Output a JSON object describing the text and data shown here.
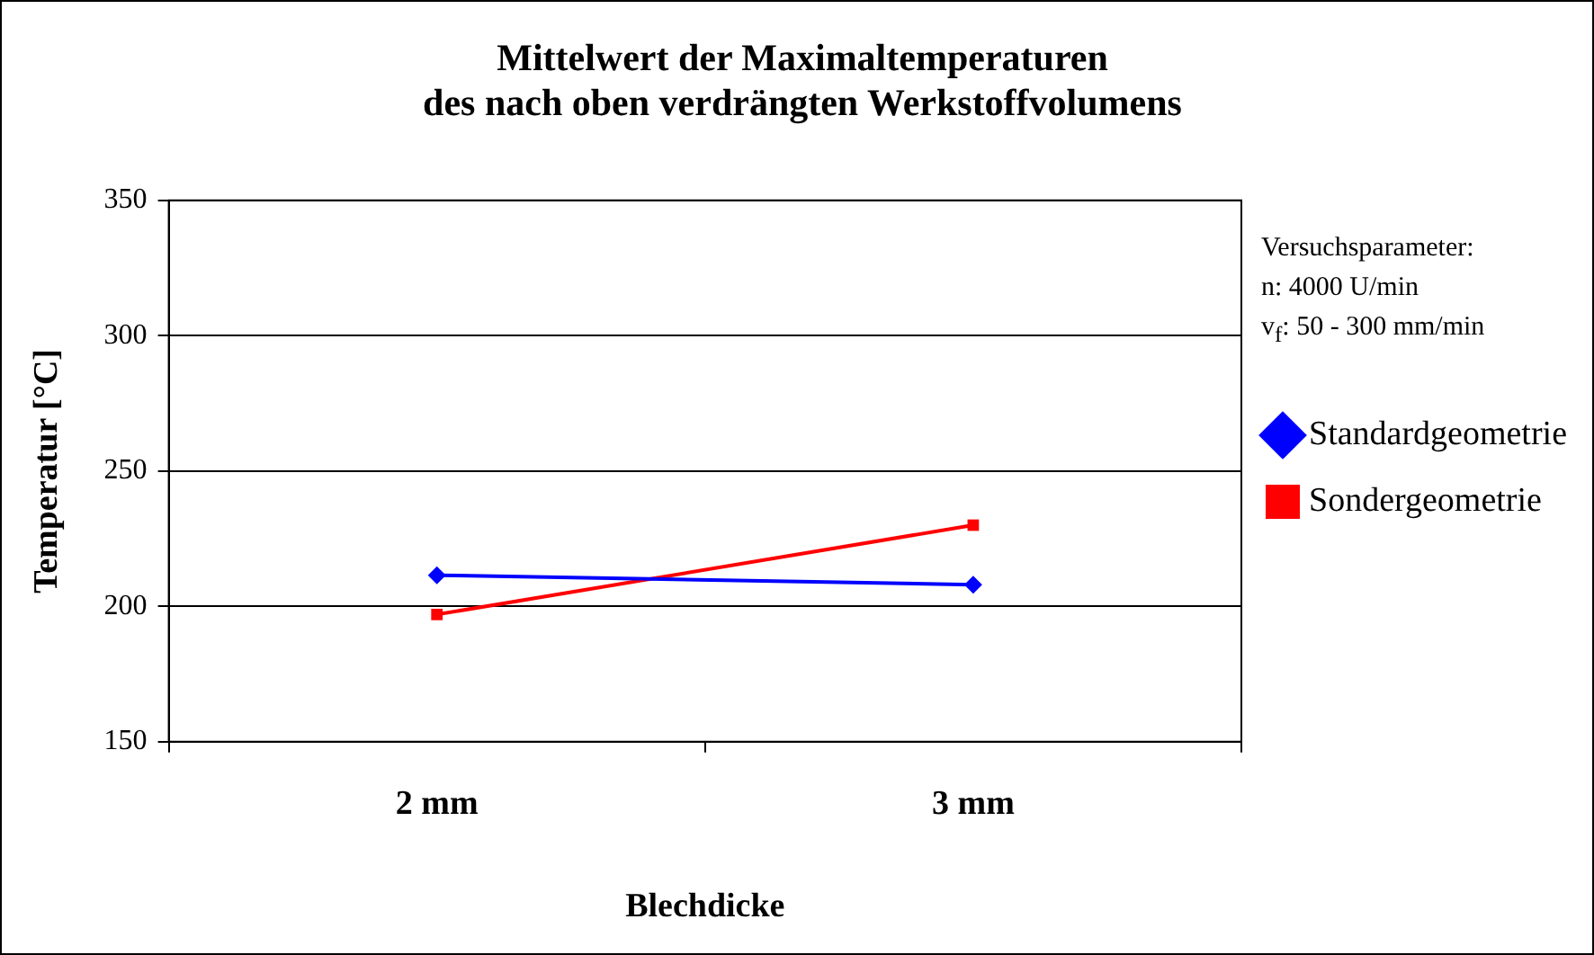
{
  "chart_data": {
    "type": "line",
    "title": "Mittelwert der Maximaltemperaturen\ndes nach oben verdrängten Werkstoffvolumens",
    "xlabel": "Blechdicke",
    "ylabel": "Temperatur [°C]",
    "categories": [
      "2 mm",
      "3 mm"
    ],
    "series": [
      {
        "name": "Standardgeometrie",
        "color": "#0000ff",
        "values": [
          211.5,
          208
        ],
        "marker": "diamond"
      },
      {
        "name": "Sondergeometrie",
        "color": "#ff0000",
        "values": [
          197,
          230
        ],
        "marker": "square"
      }
    ],
    "ylim": [
      150,
      350
    ],
    "yticks": [
      150,
      200,
      250,
      300,
      350
    ],
    "grid": "y",
    "legend": "right",
    "line_style": "solid",
    "annotations": [
      "Versuchsparameter:\nn: 4000 U/min\nv$_{f}$: 50 - 300 mm/min"
    ]
  }
}
